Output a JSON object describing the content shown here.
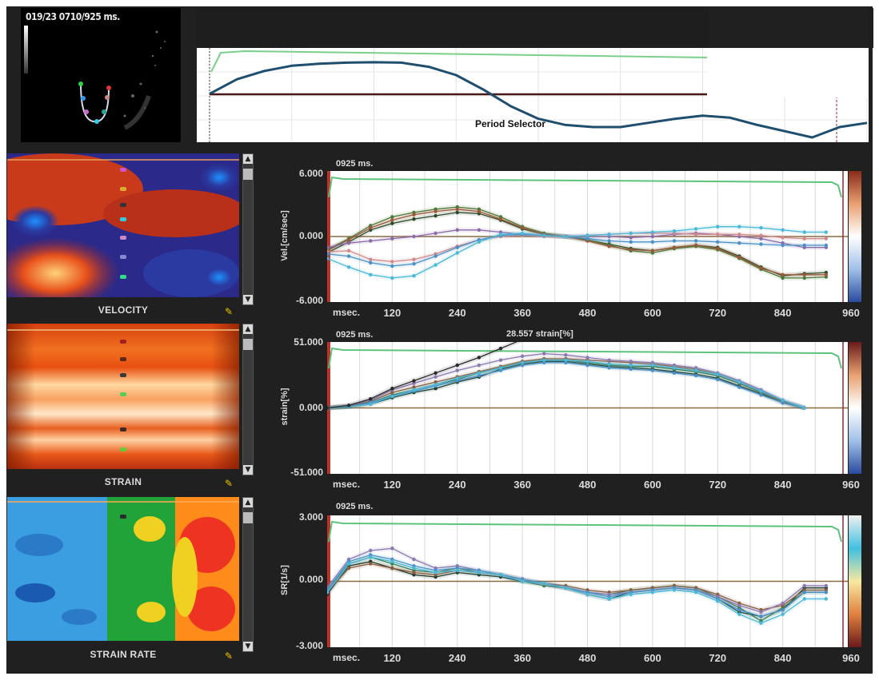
{
  "ultrasound": {
    "header": "019/23  0710/925 ms."
  },
  "period_selector": {
    "label": "Period Selector"
  },
  "panels_meta": {
    "time_ticks": [
      "120",
      "240",
      "360",
      "480",
      "600",
      "720",
      "840",
      "960"
    ],
    "time_unit": "msec.",
    "timestamp": "0925 ms."
  },
  "colors": {
    "green_trace": "#5cc47a",
    "axis_line": "#8b6b40",
    "marker_line": "#8b2a3a",
    "period_curve": "#1f4e6e"
  },
  "chart_data": [
    {
      "type": "line",
      "panel": "velocity",
      "map_label": "VELOCITY",
      "ylabel": "Vel.[cm/sec]",
      "ymax_label": "6.000",
      "ymid_label": "0.000",
      "ymin_label": "-6.000",
      "ylim": [
        -6,
        6
      ],
      "xlim": [
        0,
        960
      ],
      "x": [
        0,
        40,
        80,
        120,
        160,
        200,
        240,
        280,
        320,
        360,
        400,
        440,
        480,
        520,
        560,
        600,
        640,
        680,
        720,
        760,
        800,
        840,
        880,
        920
      ],
      "series": [
        {
          "color": "#2a4a2a",
          "values": [
            -1.5,
            -0.5,
            0.6,
            1.2,
            1.6,
            1.9,
            2.2,
            2.1,
            1.5,
            0.7,
            0.2,
            0.0,
            -0.3,
            -0.7,
            -1.1,
            -1.3,
            -1.0,
            -0.8,
            -1.0,
            -1.8,
            -2.8,
            -3.6,
            -3.4,
            -3.3
          ]
        },
        {
          "color": "#4a7a3a",
          "values": [
            -1.2,
            -0.2,
            1.0,
            1.8,
            2.2,
            2.5,
            2.7,
            2.5,
            1.8,
            0.9,
            0.3,
            0.0,
            -0.3,
            -0.8,
            -1.3,
            -1.5,
            -1.1,
            -0.9,
            -1.2,
            -2.0,
            -3.0,
            -3.8,
            -3.8,
            -3.7
          ]
        },
        {
          "color": "#9a5a3a",
          "values": [
            -1.3,
            -0.3,
            0.8,
            1.5,
            2.0,
            2.3,
            2.5,
            2.3,
            1.6,
            0.8,
            0.2,
            0.0,
            -0.4,
            -0.9,
            -1.2,
            -1.3,
            -1.0,
            -0.8,
            -1.1,
            -1.9,
            -2.9,
            -3.5,
            -3.5,
            -3.5
          ]
        },
        {
          "color": "#8a6aa8",
          "values": [
            -1.0,
            -0.6,
            -0.4,
            -0.2,
            0.0,
            0.3,
            0.6,
            0.6,
            0.4,
            0.2,
            0.1,
            0.0,
            0.0,
            0.0,
            -0.1,
            0.0,
            0.2,
            0.3,
            0.2,
            0.0,
            -0.2,
            -0.6,
            -1.0,
            -1.0
          ]
        },
        {
          "color": "#d08a8a",
          "values": [
            -1.4,
            -1.3,
            -2.1,
            -2.3,
            -2.1,
            -1.6,
            -0.9,
            -0.3,
            0.0,
            0.1,
            0.0,
            0.0,
            0.1,
            0.2,
            0.3,
            0.3,
            0.3,
            0.2,
            0.2,
            0.2,
            0.1,
            -0.1,
            -0.2,
            -0.2
          ]
        },
        {
          "color": "#4a90c8",
          "values": [
            -1.6,
            -1.8,
            -2.4,
            -2.7,
            -2.5,
            -1.8,
            -1.0,
            -0.3,
            0.1,
            0.2,
            0.1,
            0.0,
            -0.2,
            -0.4,
            -0.5,
            -0.5,
            -0.4,
            -0.4,
            -0.5,
            -0.6,
            -0.7,
            -0.8,
            -0.8,
            -0.8
          ]
        },
        {
          "color": "#4ab8d8",
          "values": [
            -2.0,
            -2.8,
            -3.5,
            -3.8,
            -3.6,
            -2.6,
            -1.5,
            -0.5,
            0.2,
            0.3,
            0.1,
            0.0,
            0.1,
            0.2,
            0.3,
            0.4,
            0.5,
            0.7,
            0.9,
            0.9,
            0.8,
            0.6,
            0.4,
            0.4
          ]
        }
      ]
    },
    {
      "type": "line",
      "panel": "strain",
      "map_label": "STRAIN",
      "ylabel": "strain[%]",
      "ymax_label": "51.000",
      "ymid_label": "0.000",
      "ymin_label": "-51.000",
      "ylim": [
        -51,
        51
      ],
      "xlim": [
        0,
        960
      ],
      "annotation": "28.557  strain[%]",
      "x": [
        0,
        40,
        80,
        120,
        160,
        200,
        240,
        280,
        320,
        360,
        400,
        440,
        480,
        520,
        560,
        600,
        640,
        680,
        720,
        760,
        800,
        840,
        880
      ],
      "series": [
        {
          "color": "#1a3a2a",
          "values": [
            0,
            1,
            3,
            8,
            12,
            15,
            20,
            24,
            30,
            34,
            36,
            36,
            34,
            32,
            31,
            30,
            28,
            26,
            23,
            17,
            11,
            4,
            0
          ]
        },
        {
          "color": "#3a7a4a",
          "values": [
            0,
            1,
            4,
            10,
            14,
            18,
            22,
            27,
            31,
            35,
            37,
            37,
            35,
            33,
            32,
            32,
            30,
            28,
            25,
            19,
            12,
            5,
            0
          ]
        },
        {
          "color": "#8a5a3a",
          "values": [
            0,
            1,
            5,
            12,
            16,
            20,
            24,
            28,
            32,
            36,
            38,
            38,
            37,
            36,
            35,
            34,
            32,
            30,
            26,
            20,
            13,
            5,
            0
          ]
        },
        {
          "color": "#8a7ab0",
          "values": [
            0,
            2,
            6,
            14,
            19,
            24,
            29,
            33,
            37,
            40,
            42,
            41,
            39,
            37,
            36,
            35,
            33,
            31,
            27,
            21,
            14,
            6,
            0
          ]
        },
        {
          "color": "#4a90c8",
          "values": [
            0,
            1,
            4,
            9,
            13,
            17,
            21,
            25,
            29,
            33,
            35,
            35,
            33,
            31,
            30,
            29,
            27,
            25,
            22,
            16,
            10,
            4,
            0
          ]
        },
        {
          "color": "#4ab8d8",
          "values": [
            0,
            1,
            3,
            9,
            14,
            18,
            23,
            27,
            31,
            35,
            37,
            37,
            36,
            34,
            33,
            33,
            31,
            29,
            26,
            20,
            13,
            6,
            0
          ]
        },
        {
          "color": "#2a2a2a",
          "values": [
            0,
            2,
            7,
            15,
            21,
            27,
            33,
            39,
            46,
            53,
            60,
            null,
            null,
            null,
            null,
            null,
            null,
            null,
            null,
            null,
            null,
            null,
            null
          ]
        }
      ]
    },
    {
      "type": "line",
      "panel": "strain_rate",
      "map_label": "STRAIN RATE",
      "ylabel": "SR[1/s]",
      "ymax_label": "3.000",
      "ymid_label": "0.000",
      "ymin_label": "-3.000",
      "ylim": [
        -3,
        3
      ],
      "xlim": [
        0,
        960
      ],
      "x": [
        0,
        40,
        80,
        120,
        160,
        200,
        240,
        280,
        320,
        360,
        400,
        440,
        480,
        520,
        560,
        600,
        640,
        680,
        720,
        760,
        800,
        840,
        880,
        920
      ],
      "series": [
        {
          "color": "#1a3a2a",
          "values": [
            -0.6,
            0.7,
            0.9,
            0.6,
            0.3,
            0.2,
            0.4,
            0.3,
            0.2,
            0.0,
            -0.1,
            -0.3,
            -0.6,
            -0.8,
            -0.5,
            -0.4,
            -0.3,
            -0.4,
            -0.8,
            -1.4,
            -1.6,
            -1.3,
            -0.3,
            -0.3
          ]
        },
        {
          "color": "#3a7a4a",
          "values": [
            -0.4,
            0.8,
            1.1,
            0.8,
            0.5,
            0.4,
            0.6,
            0.4,
            0.3,
            0.0,
            -0.2,
            -0.3,
            -0.5,
            -0.6,
            -0.4,
            -0.3,
            -0.2,
            -0.3,
            -0.7,
            -1.2,
            -1.8,
            -1.2,
            -0.5,
            -0.5
          ]
        },
        {
          "color": "#8a5a3a",
          "values": [
            -0.5,
            0.6,
            0.8,
            0.6,
            0.4,
            0.3,
            0.5,
            0.4,
            0.3,
            0.1,
            -0.1,
            -0.2,
            -0.4,
            -0.5,
            -0.4,
            -0.3,
            -0.2,
            -0.3,
            -0.6,
            -1.0,
            -1.3,
            -1.1,
            -0.4,
            -0.4
          ]
        },
        {
          "color": "#8a7ab0",
          "values": [
            -0.3,
            1.0,
            1.4,
            1.5,
            1.0,
            0.6,
            0.7,
            0.5,
            0.3,
            0.1,
            -0.1,
            -0.3,
            -0.5,
            -0.6,
            -0.5,
            -0.4,
            -0.3,
            -0.4,
            -0.7,
            -1.1,
            -1.4,
            -1.0,
            -0.2,
            -0.2
          ]
        },
        {
          "color": "#4a90c8",
          "values": [
            -0.4,
            0.9,
            1.2,
            1.0,
            0.7,
            0.5,
            0.6,
            0.5,
            0.3,
            0.1,
            -0.1,
            -0.3,
            -0.5,
            -0.7,
            -0.5,
            -0.4,
            -0.3,
            -0.4,
            -0.8,
            -1.3,
            -1.6,
            -1.3,
            -0.5,
            -0.5
          ]
        },
        {
          "color": "#4ab8d8",
          "values": [
            -0.5,
            0.8,
            1.1,
            0.9,
            0.6,
            0.4,
            0.5,
            0.4,
            0.3,
            0.0,
            -0.1,
            -0.3,
            -0.6,
            -0.8,
            -0.6,
            -0.5,
            -0.4,
            -0.5,
            -0.9,
            -1.5,
            -1.9,
            -1.5,
            -0.8,
            -0.8
          ]
        }
      ]
    },
    {
      "type": "line",
      "panel": "period_selector",
      "xlim": [
        0,
        960
      ],
      "ylim": [
        -2,
        2
      ],
      "x": [
        0,
        40,
        80,
        120,
        160,
        200,
        240,
        280,
        320,
        360,
        400,
        440,
        480,
        520,
        560,
        600,
        640,
        680,
        720,
        760,
        800,
        840,
        880,
        920,
        960
      ],
      "series": [
        {
          "color": "#1f4e6e",
          "values": [
            0.1,
            0.8,
            1.2,
            1.45,
            1.55,
            1.6,
            1.62,
            1.6,
            1.4,
            1.0,
            0.3,
            -0.5,
            -1.1,
            -1.4,
            -1.5,
            -1.5,
            -1.3,
            -1.1,
            -0.95,
            -1.05,
            -1.4,
            -1.7,
            -2.0,
            -1.5,
            -1.3
          ]
        }
      ]
    }
  ]
}
